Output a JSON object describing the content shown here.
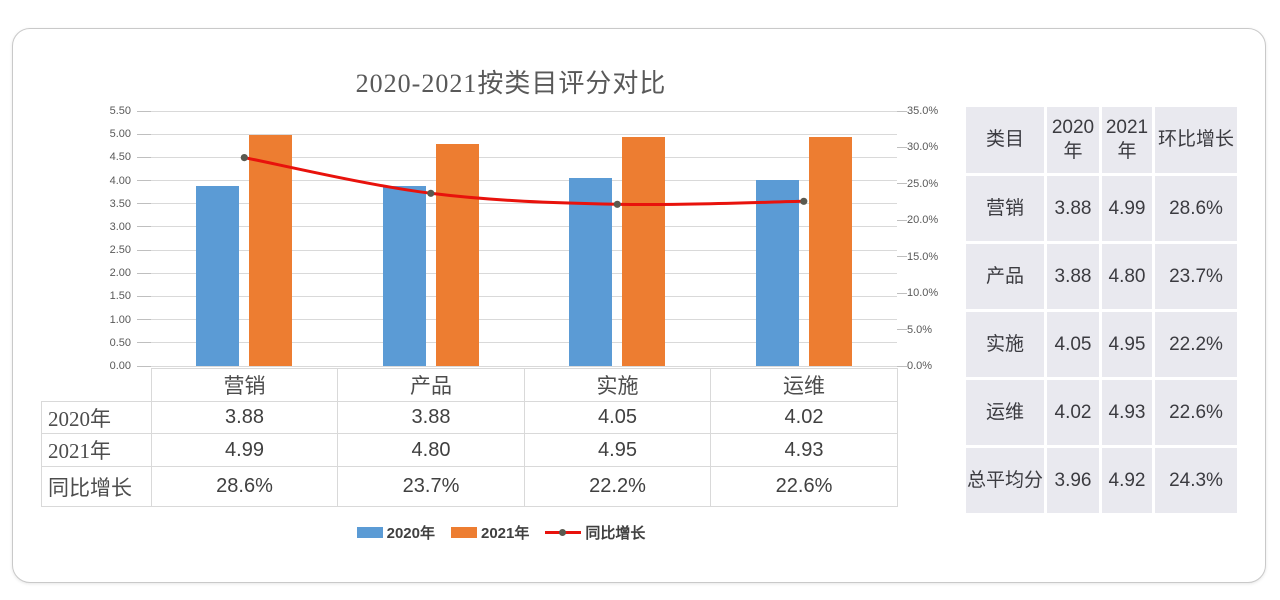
{
  "chart_data": {
    "type": "combo",
    "title": "2020-2021按类目评分对比",
    "categories": [
      "营销",
      "产品",
      "实施",
      "运维"
    ],
    "series": [
      {
        "name": "2020年",
        "type": "bar",
        "axis": "left",
        "color": "#5B9BD5",
        "values": [
          3.88,
          3.88,
          4.05,
          4.02
        ]
      },
      {
        "name": "2021年",
        "type": "bar",
        "axis": "left",
        "color": "#ED7D31",
        "values": [
          4.99,
          4.8,
          4.95,
          4.93
        ]
      },
      {
        "name": "同比增长",
        "type": "line",
        "axis": "right",
        "color": "#E8120C",
        "marker_color": "#5a5a50",
        "values": [
          28.6,
          23.7,
          22.2,
          22.6
        ]
      }
    ],
    "left_axis": {
      "min": 0,
      "max": 5.5,
      "step": 0.5,
      "labels": [
        "0.00",
        "0.50",
        "1.00",
        "1.50",
        "2.00",
        "2.50",
        "3.00",
        "3.50",
        "4.00",
        "4.50",
        "5.00",
        "5.50"
      ]
    },
    "right_axis": {
      "min": 0,
      "max": 35,
      "step": 5,
      "labels": [
        "0.0%",
        "5.0%",
        "10.0%",
        "15.0%",
        "20.0%",
        "25.0%",
        "30.0%",
        "35.0%"
      ]
    },
    "grid": true,
    "legend_position": "bottom",
    "legend": [
      "2020年",
      "2021年",
      "同比增长"
    ]
  },
  "bottom_table": {
    "columns": [
      "营销",
      "产品",
      "实施",
      "运维"
    ],
    "rows": [
      {
        "label": "2020年",
        "values": [
          "3.88",
          "3.88",
          "4.05",
          "4.02"
        ]
      },
      {
        "label": "2021年",
        "values": [
          "4.99",
          "4.80",
          "4.95",
          "4.93"
        ]
      },
      {
        "label": "同比增长",
        "values": [
          "28.6%",
          "23.7%",
          "22.2%",
          "22.6%"
        ]
      }
    ]
  },
  "summary_table": {
    "headers": [
      "类目",
      "2020年",
      "2021年",
      "环比增长"
    ],
    "rows": [
      [
        "营销",
        "3.88",
        "4.99",
        "28.6%"
      ],
      [
        "产品",
        "3.88",
        "4.80",
        "23.7%"
      ],
      [
        "实施",
        "4.05",
        "4.95",
        "22.2%"
      ],
      [
        "运维",
        "4.02",
        "4.93",
        "22.6%"
      ],
      [
        "总平均分",
        "3.96",
        "4.92",
        "24.3%"
      ]
    ],
    "cell_bg": "#E9E9EF"
  },
  "colors": {
    "bar_2020": "#5B9BD5",
    "bar_2021": "#ED7D31",
    "growth_line": "#E8120C",
    "grid": "#D9D9D9",
    "axis_text": "#595959",
    "table_cell_bg": "#E9E9EF"
  }
}
